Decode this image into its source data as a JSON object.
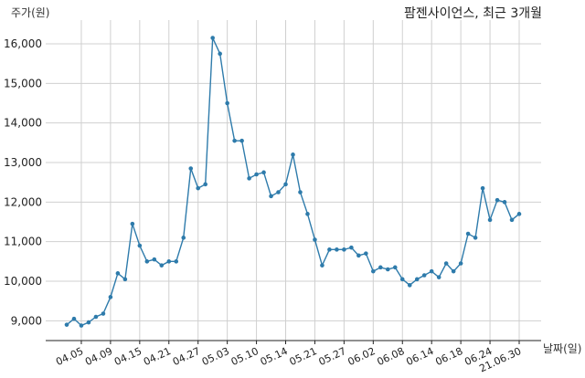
{
  "chart_data": {
    "type": "line",
    "title": "팜젠사이언스, 최근 3개월",
    "ylabel": "주가(원)",
    "xlabel": "날짜(일)",
    "ylim": [
      8500,
      16600
    ],
    "yticks": [
      9000,
      10000,
      11000,
      12000,
      13000,
      14000,
      15000,
      16000
    ],
    "ytick_labels": [
      "9,000",
      "10,000",
      "11,000",
      "12,000",
      "13,000",
      "14,000",
      "15,000",
      "16,000"
    ],
    "xtick_labels": [
      "04.05",
      "04.09",
      "04.15",
      "04.21",
      "04.27",
      "05.03",
      "05.10",
      "05.14",
      "05.21",
      "05.27",
      "06.02",
      "06.08",
      "06.14",
      "06.18",
      "06.24",
      "21.06.30"
    ],
    "xtick_index": [
      2,
      6,
      10,
      14,
      18,
      22,
      26,
      30,
      34,
      38,
      42,
      46,
      50,
      54,
      58,
      62
    ],
    "grid": true,
    "color": "#2e7bab",
    "series": [
      {
        "values": [
          8900,
          9050,
          8880,
          8960,
          9100,
          9180,
          9600,
          10200,
          10050,
          11450,
          10900,
          10500,
          10550,
          10400,
          10500,
          10500,
          11100,
          12850,
          12350,
          12450,
          16150,
          15750,
          14500,
          13550,
          13550,
          12600,
          12700,
          12750,
          12150,
          12250,
          12450,
          13200,
          12250,
          11700,
          11050,
          10400,
          10800,
          10800,
          10800,
          10850,
          10650,
          10700,
          10250,
          10350,
          10300,
          10350,
          10050,
          9900,
          10050,
          10150,
          10250,
          10100,
          10450,
          10250,
          10450,
          11200,
          11100,
          12350,
          11550,
          12050,
          12000,
          11550,
          11700
        ]
      }
    ]
  }
}
